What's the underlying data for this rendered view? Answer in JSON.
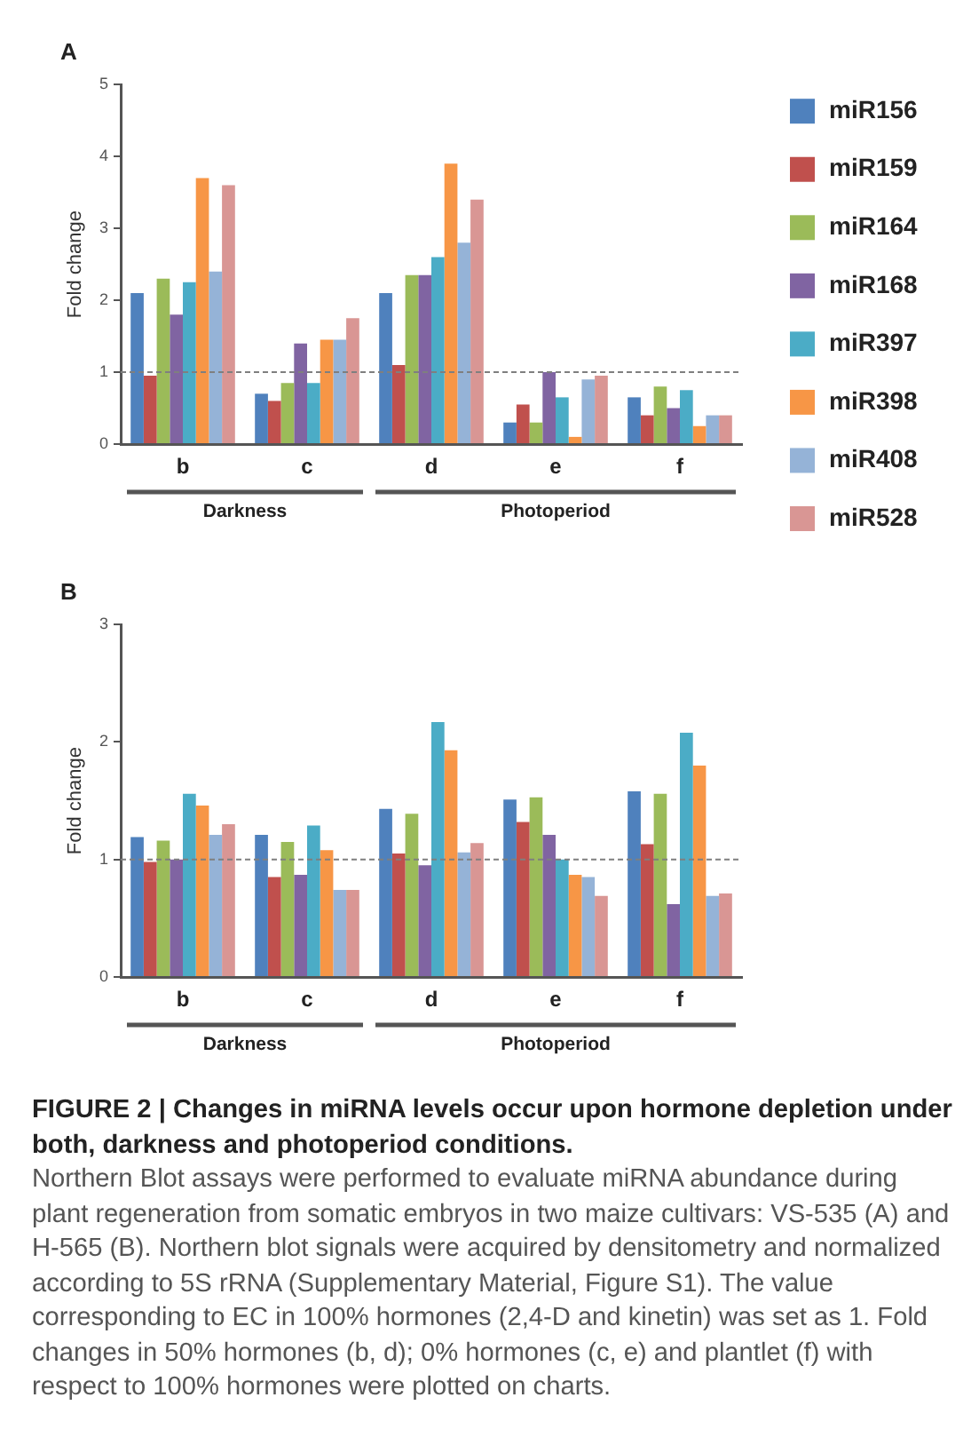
{
  "chart_data": [
    {
      "type": "bar",
      "title": "A",
      "ylabel": "Fold change",
      "categories": [
        "b",
        "c",
        "d",
        "e",
        "f"
      ],
      "series": [
        {
          "name": "miR156",
          "color": "#4f81bd",
          "values": [
            2.1,
            0.7,
            2.1,
            0.3,
            0.65
          ]
        },
        {
          "name": "miR159",
          "color": "#c0504d",
          "values": [
            0.95,
            0.6,
            1.1,
            0.55,
            0.4
          ]
        },
        {
          "name": "miR164",
          "color": "#9bbb59",
          "values": [
            2.3,
            0.85,
            2.35,
            0.3,
            0.8
          ]
        },
        {
          "name": "miR168",
          "color": "#8064a2",
          "values": [
            1.8,
            1.4,
            2.35,
            1.0,
            0.5
          ]
        },
        {
          "name": "miR397",
          "color": "#4bacc6",
          "values": [
            2.25,
            0.85,
            2.6,
            0.65,
            0.75
          ]
        },
        {
          "name": "miR398",
          "color": "#f79646",
          "values": [
            3.7,
            1.45,
            3.9,
            0.1,
            0.25
          ]
        },
        {
          "name": "miR408",
          "color": "#95b3d7",
          "values": [
            2.4,
            1.45,
            2.8,
            0.9,
            0.4
          ]
        },
        {
          "name": "miR528",
          "color": "#d99694",
          "values": [
            3.6,
            1.75,
            3.4,
            0.95,
            0.4
          ]
        }
      ],
      "ylim": [
        0,
        5
      ],
      "yticks": [
        0,
        1,
        2,
        3,
        4,
        5
      ],
      "legend": "right",
      "ref_lines": [
        {
          "axis": "y",
          "value": 1,
          "color": "#7f7f7f",
          "line_style": "dashed"
        }
      ],
      "annotations": [
        "Darkness",
        "Photoperiod"
      ]
    },
    {
      "type": "bar",
      "title": "B",
      "ylabel": "Fold change",
      "categories": [
        "b",
        "c",
        "d",
        "e",
        "f"
      ],
      "series": [
        {
          "color": "#4f81bd",
          "values": [
            1.19,
            1.21,
            1.43,
            1.51,
            1.58
          ]
        },
        {
          "color": "#c0504d",
          "values": [
            0.98,
            0.85,
            1.05,
            1.32,
            1.13
          ]
        },
        {
          "color": "#9bbb59",
          "values": [
            1.16,
            1.15,
            1.39,
            1.53,
            1.56
          ]
        },
        {
          "color": "#8064a2",
          "values": [
            1.0,
            0.87,
            0.95,
            1.21,
            0.62
          ]
        },
        {
          "color": "#4bacc6",
          "values": [
            1.56,
            1.29,
            2.17,
            1.0,
            2.08
          ]
        },
        {
          "color": "#f79646",
          "values": [
            1.46,
            1.08,
            1.93,
            0.87,
            1.8
          ]
        },
        {
          "color": "#95b3d7",
          "values": [
            1.21,
            0.74,
            1.06,
            0.85,
            0.69
          ]
        },
        {
          "color": "#d99694",
          "values": [
            1.3,
            0.74,
            1.14,
            0.69,
            0.71
          ]
        }
      ],
      "ylim": [
        0,
        3
      ],
      "yticks": [
        0,
        1,
        2,
        3
      ],
      "ref_lines": [
        {
          "axis": "y",
          "value": 1,
          "color": "#7f7f7f",
          "line_style": "dashed"
        }
      ],
      "annotations": [
        "Darkness",
        "Photoperiod",
        "FIGURE 2 | Changes in miRNA levels occur upon hormone depletion under both, darkness and photoperiod conditions.",
        "Northern Blot assays were performed to evaluate miRNA abundance during plant regeneration from somatic embryos in two maize cultivars: VS-535 (A) and H-565 (B). Northern blot signals were acquired by densitometry and normalized according to 5S rRNA (Supplementary Material, Figure S1). The value corresponding to EC in 100% hormones (2,4-D and kinetin) was set as 1. Fold changes in 50% hormones (b, d); 0% hormones (c, e) and plantlet (f) with respect to 100% hormones were plotted on charts."
      ]
    }
  ]
}
